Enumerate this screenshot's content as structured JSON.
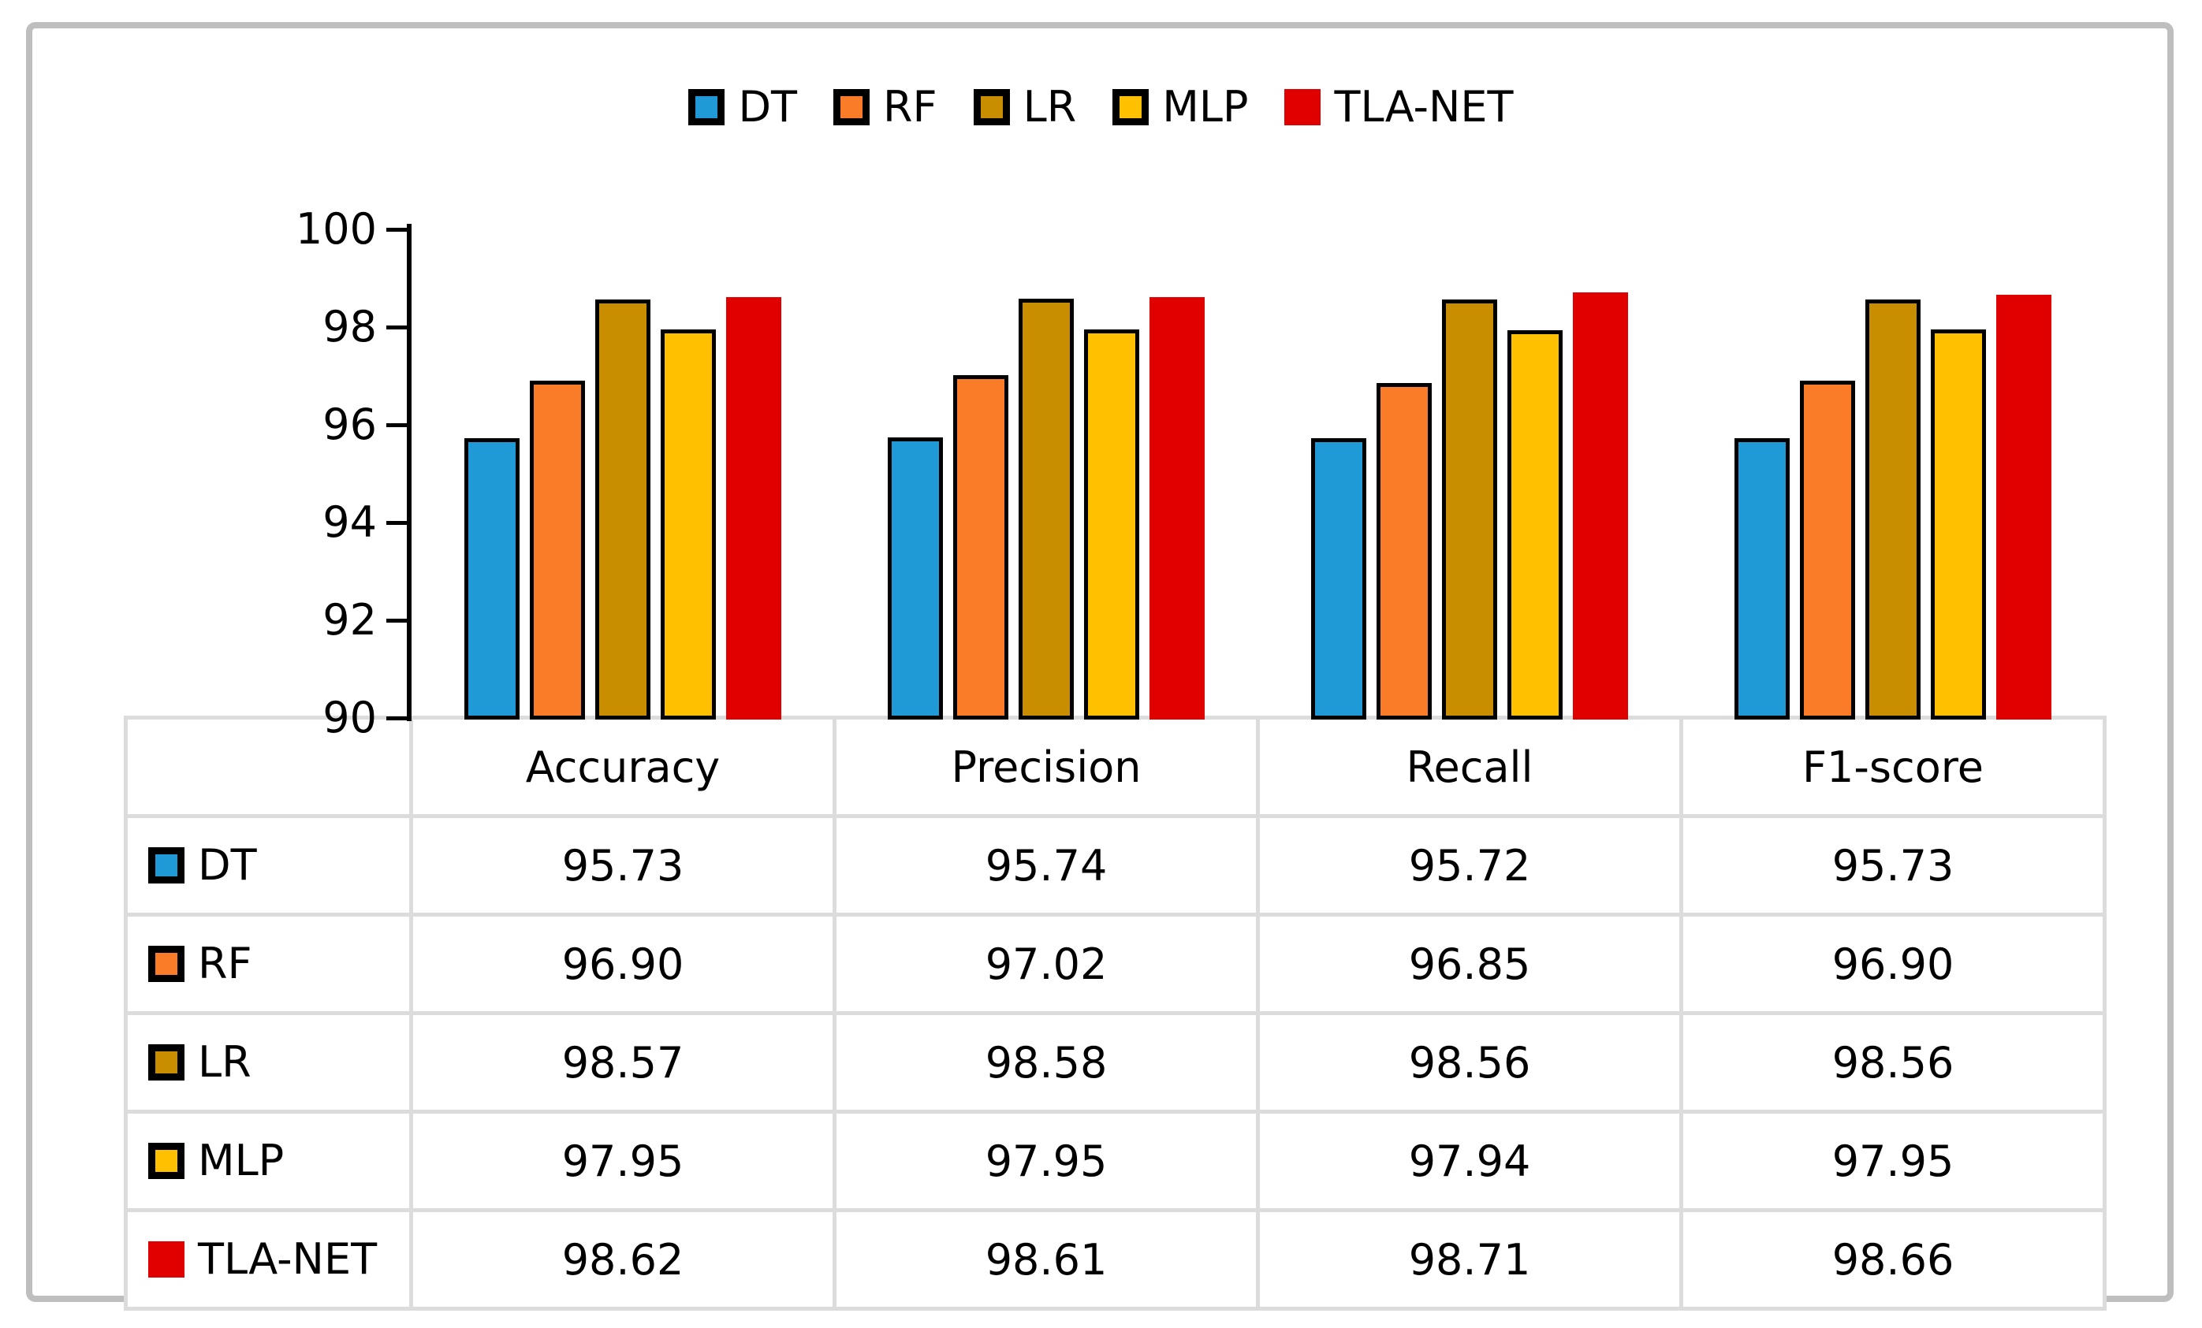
{
  "colors": {
    "background": "#FFFFFF",
    "panel_border": "#BEBEBE",
    "table_border": "#DCDCDC",
    "axis": "#000000",
    "text": "#000000",
    "bar_outline": "#000000"
  },
  "legend": {
    "items": [
      {
        "label": "DT",
        "color": "#1F9AD7",
        "outlined": true
      },
      {
        "label": "RF",
        "color": "#FB7C28",
        "outlined": true
      },
      {
        "label": "LR",
        "color": "#C88E00",
        "outlined": true
      },
      {
        "label": "MLP",
        "color": "#FFC000",
        "outlined": true
      },
      {
        "label": "TLA-NET",
        "color": "#E00000",
        "outlined": false
      }
    ]
  },
  "chart_data": {
    "type": "bar",
    "title": "",
    "categories": [
      "Accuracy",
      "Precision",
      "Recall",
      "F1-score"
    ],
    "series": [
      {
        "name": "DT",
        "color": "#1F9AD7",
        "outlined": true,
        "values": [
          95.73,
          95.74,
          95.72,
          95.73
        ]
      },
      {
        "name": "RF",
        "color": "#FB7C28",
        "outlined": true,
        "values": [
          96.9,
          97.02,
          96.85,
          96.9
        ]
      },
      {
        "name": "LR",
        "color": "#C88E00",
        "outlined": true,
        "values": [
          98.57,
          98.58,
          98.56,
          98.56
        ]
      },
      {
        "name": "MLP",
        "color": "#FFC000",
        "outlined": true,
        "values": [
          97.95,
          97.95,
          97.94,
          97.95
        ]
      },
      {
        "name": "TLA-NET",
        "color": "#E00000",
        "outlined": false,
        "values": [
          98.62,
          98.61,
          98.71,
          98.66
        ]
      }
    ],
    "ylim": [
      90,
      100
    ],
    "yticks": [
      90,
      92,
      94,
      96,
      98,
      100
    ],
    "grid": false,
    "legend_position": "top"
  },
  "table": {
    "corner_label": "",
    "columns": [
      "Accuracy",
      "Precision",
      "Recall",
      "F1-score"
    ],
    "rows": [
      {
        "label": "DT",
        "marker_color": "#1F9AD7",
        "marker_outlined": true,
        "values": [
          "95.73",
          "95.74",
          "95.72",
          "95.73"
        ]
      },
      {
        "label": "RF",
        "marker_color": "#FB7C28",
        "marker_outlined": true,
        "values": [
          "96.90",
          "97.02",
          "96.85",
          "96.90"
        ]
      },
      {
        "label": "LR",
        "marker_color": "#C88E00",
        "marker_outlined": true,
        "values": [
          "98.57",
          "98.58",
          "98.56",
          "98.56"
        ]
      },
      {
        "label": "MLP",
        "marker_color": "#FFC000",
        "marker_outlined": true,
        "values": [
          "97.95",
          "97.95",
          "97.94",
          "97.95"
        ]
      },
      {
        "label": "TLA-NET",
        "marker_color": "#E00000",
        "marker_outlined": false,
        "values": [
          "98.62",
          "98.61",
          "98.71",
          "98.66"
        ]
      }
    ]
  }
}
